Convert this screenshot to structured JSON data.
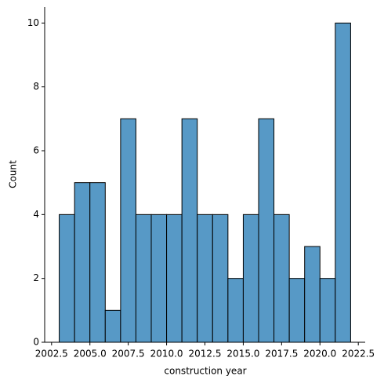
{
  "chart_data": {
    "type": "histogram",
    "xlabel": "construction year",
    "ylabel": "Count",
    "bins": [
      2003,
      2004,
      2005,
      2006,
      2007,
      2008,
      2009,
      2010,
      2011,
      2012,
      2013,
      2014,
      2015,
      2016,
      2017,
      2018,
      2019,
      2020,
      2021,
      2022
    ],
    "values": [
      4,
      5,
      5,
      1,
      7,
      4,
      4,
      4,
      7,
      4,
      4,
      2,
      4,
      7,
      4,
      2,
      3,
      2,
      10
    ],
    "color": "#5799c6",
    "edgecolor": "#000000",
    "xlim": [
      2002.05,
      2022.95
    ],
    "ylim": [
      0,
      10.5
    ],
    "xticks": [
      2002.5,
      {
        "value": 2005,
        "label": "2005.0"
      },
      2007.5,
      {
        "value": 2010,
        "label": "2010.0"
      },
      2012.5,
      {
        "value": 2015,
        "label": "2015.0"
      },
      2017.5,
      {
        "value": 2020,
        "label": "2020.0"
      },
      2022.5
    ],
    "yticks": [
      0,
      2,
      4,
      6,
      8,
      10
    ],
    "grid": false
  }
}
